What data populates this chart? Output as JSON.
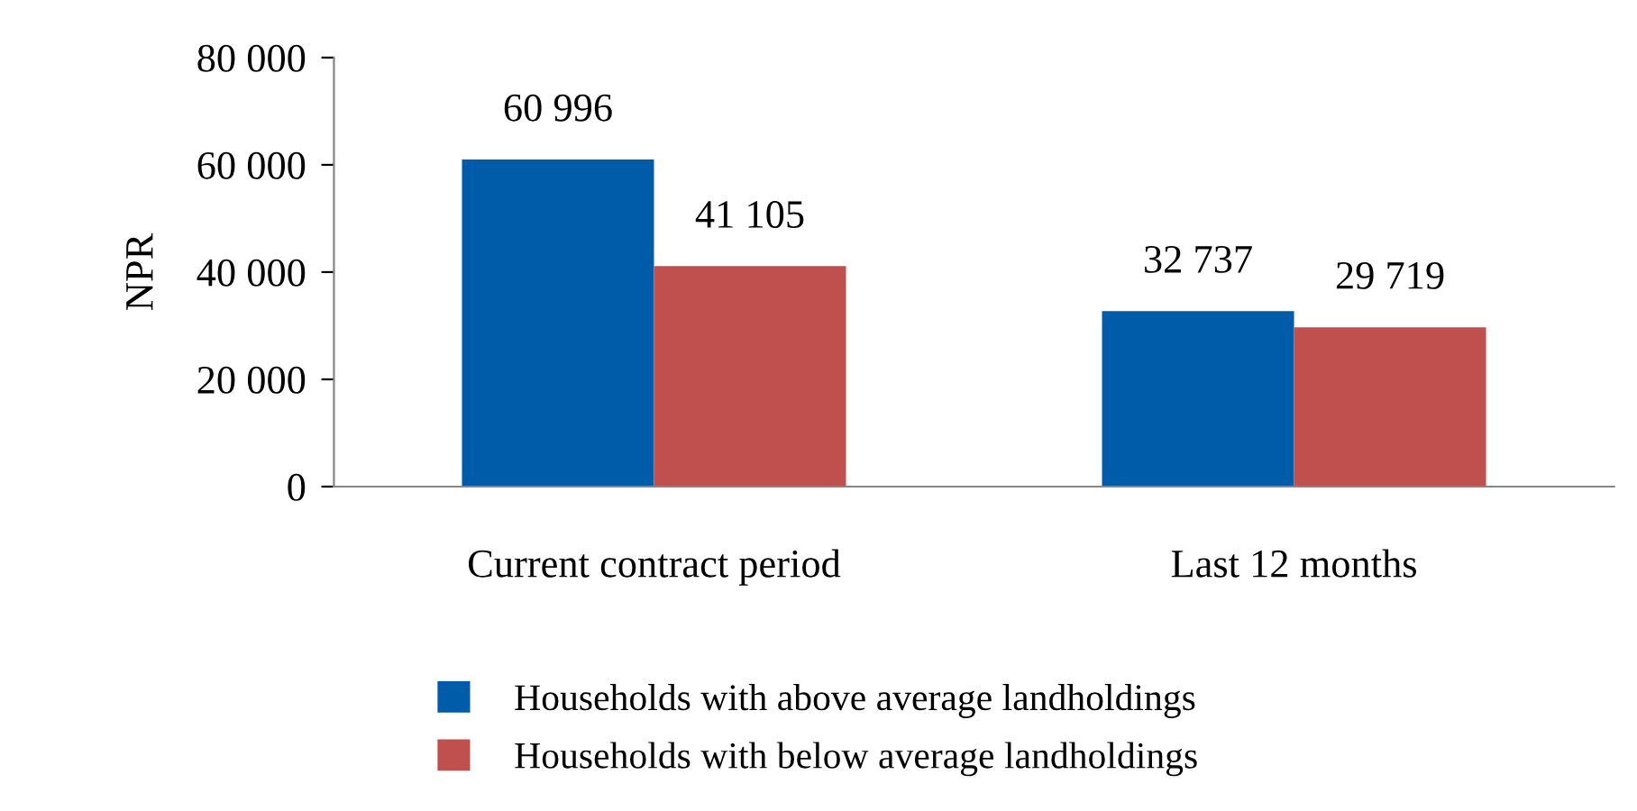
{
  "chart_data": {
    "type": "bar",
    "ylabel": "NPR",
    "categories": [
      "Current contract period",
      "Last 12 months"
    ],
    "series": [
      {
        "name": "Households with above average landholdings",
        "color": "#005ca8",
        "values": [
          60996,
          32737
        ],
        "value_labels": [
          "60 996",
          "32 737"
        ]
      },
      {
        "name": "Households with below average landholdings",
        "color": "#c0504d",
        "values": [
          41105,
          29719
        ],
        "value_labels": [
          "41 105",
          "29 719"
        ]
      }
    ],
    "ylim": [
      0,
      80000
    ],
    "yticks": [
      {
        "value": 0,
        "label": "0"
      },
      {
        "value": 20000,
        "label": "20 000"
      },
      {
        "value": 40000,
        "label": "40 000"
      },
      {
        "value": 60000,
        "label": "60 000"
      },
      {
        "value": 80000,
        "label": "80 000"
      }
    ],
    "grid": false,
    "legend": "bottom"
  }
}
